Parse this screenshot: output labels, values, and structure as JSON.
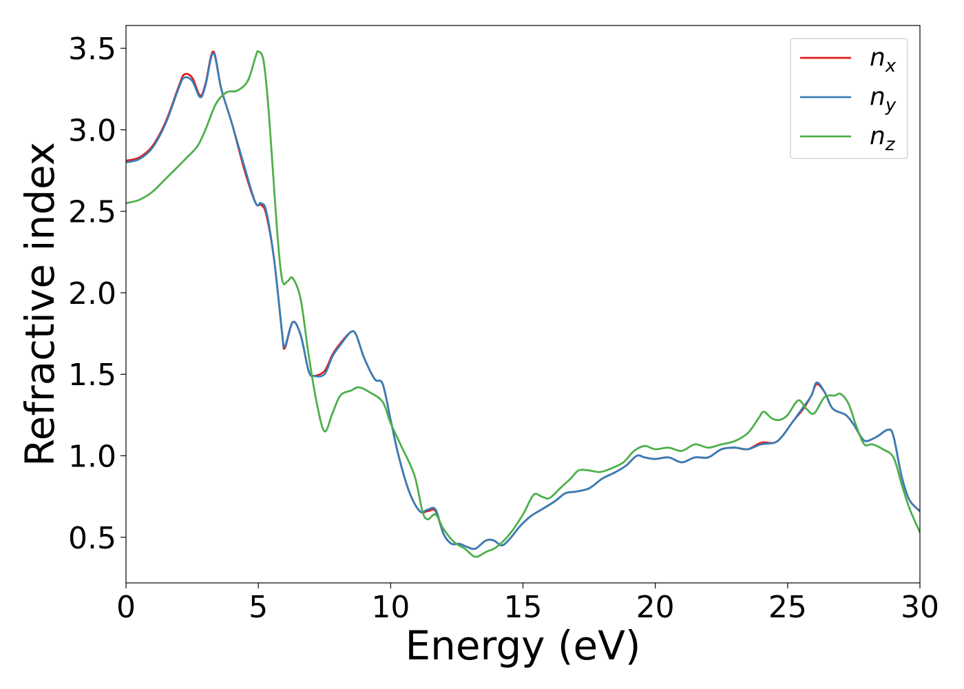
{
  "chart_data": {
    "type": "line",
    "title": "",
    "xlabel": "Energy (eV)",
    "ylabel": "Refractive index",
    "xlim": [
      0,
      30
    ],
    "ylim": [
      0.22,
      3.64
    ],
    "xticks": [
      0,
      5,
      10,
      15,
      20,
      25,
      30
    ],
    "yticks": [
      0.5,
      1.0,
      1.5,
      2.0,
      2.5,
      3.0,
      3.5
    ],
    "xtick_labels": [
      "0",
      "5",
      "10",
      "15",
      "20",
      "25",
      "30"
    ],
    "ytick_labels": [
      "0.5",
      "1.0",
      "1.5",
      "2.0",
      "2.5",
      "3.0",
      "3.5"
    ],
    "grid": false,
    "legend_position": "top-right",
    "series": [
      {
        "name": "n_x",
        "legend_base": "n",
        "legend_sub": "x",
        "color": "#e41a1c",
        "points": [
          [
            0,
            2.81
          ],
          [
            0.5,
            2.83
          ],
          [
            1.0,
            2.9
          ],
          [
            1.5,
            3.05
          ],
          [
            2.0,
            3.27
          ],
          [
            2.2,
            3.34
          ],
          [
            2.5,
            3.32
          ],
          [
            2.8,
            3.21
          ],
          [
            3.0,
            3.28
          ],
          [
            3.3,
            3.48
          ],
          [
            3.6,
            3.25
          ],
          [
            4.0,
            3.04
          ],
          [
            4.5,
            2.74
          ],
          [
            4.9,
            2.55
          ],
          [
            5.1,
            2.54
          ],
          [
            5.3,
            2.48
          ],
          [
            5.6,
            2.2
          ],
          [
            5.9,
            1.75
          ],
          [
            6.0,
            1.66
          ],
          [
            6.3,
            1.82
          ],
          [
            6.6,
            1.74
          ],
          [
            6.9,
            1.52
          ],
          [
            7.1,
            1.49
          ],
          [
            7.5,
            1.52
          ],
          [
            7.8,
            1.62
          ],
          [
            8.1,
            1.69
          ],
          [
            8.5,
            1.76
          ],
          [
            8.7,
            1.74
          ],
          [
            9.0,
            1.6
          ],
          [
            9.4,
            1.47
          ],
          [
            9.7,
            1.44
          ],
          [
            10.0,
            1.22
          ],
          [
            10.3,
            1.0
          ],
          [
            10.7,
            0.78
          ],
          [
            11.1,
            0.66
          ],
          [
            11.4,
            0.66
          ],
          [
            11.7,
            0.66
          ],
          [
            12.0,
            0.52
          ],
          [
            12.3,
            0.46
          ],
          [
            12.6,
            0.46
          ],
          [
            12.9,
            0.44
          ],
          [
            13.2,
            0.43
          ],
          [
            13.6,
            0.48
          ],
          [
            13.9,
            0.48
          ],
          [
            14.2,
            0.45
          ],
          [
            14.5,
            0.49
          ],
          [
            14.9,
            0.57
          ],
          [
            15.3,
            0.63
          ],
          [
            15.7,
            0.67
          ],
          [
            16.2,
            0.72
          ],
          [
            16.6,
            0.77
          ],
          [
            17.0,
            0.78
          ],
          [
            17.5,
            0.8
          ],
          [
            18.0,
            0.86
          ],
          [
            18.5,
            0.9
          ],
          [
            18.9,
            0.94
          ],
          [
            19.3,
            1.0
          ],
          [
            19.6,
            0.99
          ],
          [
            20.0,
            0.98
          ],
          [
            20.5,
            0.99
          ],
          [
            21.0,
            0.96
          ],
          [
            21.5,
            0.99
          ],
          [
            22.0,
            0.99
          ],
          [
            22.5,
            1.04
          ],
          [
            23.0,
            1.05
          ],
          [
            23.5,
            1.04
          ],
          [
            24.0,
            1.08
          ],
          [
            24.5,
            1.08
          ],
          [
            24.8,
            1.12
          ],
          [
            25.2,
            1.21
          ],
          [
            25.6,
            1.29
          ],
          [
            25.9,
            1.37
          ],
          [
            26.1,
            1.44
          ],
          [
            26.4,
            1.39
          ],
          [
            26.7,
            1.29
          ],
          [
            27.2,
            1.25
          ],
          [
            27.5,
            1.19
          ],
          [
            27.8,
            1.11
          ],
          [
            28.0,
            1.09
          ],
          [
            28.4,
            1.12
          ],
          [
            28.8,
            1.16
          ],
          [
            29.0,
            1.12
          ],
          [
            29.3,
            0.88
          ],
          [
            29.6,
            0.73
          ],
          [
            30.0,
            0.66
          ]
        ]
      },
      {
        "name": "n_y",
        "legend_base": "n",
        "legend_sub": "y",
        "color": "#377eb8",
        "points": [
          [
            0,
            2.8
          ],
          [
            0.5,
            2.82
          ],
          [
            1.0,
            2.89
          ],
          [
            1.5,
            3.04
          ],
          [
            2.0,
            3.26
          ],
          [
            2.2,
            3.32
          ],
          [
            2.5,
            3.3
          ],
          [
            2.8,
            3.2
          ],
          [
            3.0,
            3.27
          ],
          [
            3.3,
            3.47
          ],
          [
            3.6,
            3.25
          ],
          [
            4.0,
            3.04
          ],
          [
            4.5,
            2.76
          ],
          [
            4.9,
            2.55
          ],
          [
            5.1,
            2.55
          ],
          [
            5.3,
            2.5
          ],
          [
            5.6,
            2.2
          ],
          [
            5.9,
            1.75
          ],
          [
            6.0,
            1.67
          ],
          [
            6.3,
            1.82
          ],
          [
            6.6,
            1.74
          ],
          [
            6.9,
            1.52
          ],
          [
            7.1,
            1.49
          ],
          [
            7.5,
            1.5
          ],
          [
            7.8,
            1.61
          ],
          [
            8.1,
            1.68
          ],
          [
            8.5,
            1.76
          ],
          [
            8.7,
            1.74
          ],
          [
            9.0,
            1.6
          ],
          [
            9.4,
            1.47
          ],
          [
            9.7,
            1.44
          ],
          [
            10.0,
            1.22
          ],
          [
            10.3,
            1.0
          ],
          [
            10.7,
            0.78
          ],
          [
            11.1,
            0.66
          ],
          [
            11.4,
            0.67
          ],
          [
            11.7,
            0.67
          ],
          [
            12.0,
            0.52
          ],
          [
            12.3,
            0.46
          ],
          [
            12.6,
            0.46
          ],
          [
            12.9,
            0.44
          ],
          [
            13.2,
            0.43
          ],
          [
            13.6,
            0.48
          ],
          [
            13.9,
            0.48
          ],
          [
            14.2,
            0.45
          ],
          [
            14.5,
            0.49
          ],
          [
            14.9,
            0.57
          ],
          [
            15.3,
            0.63
          ],
          [
            15.7,
            0.67
          ],
          [
            16.2,
            0.72
          ],
          [
            16.6,
            0.77
          ],
          [
            17.0,
            0.78
          ],
          [
            17.5,
            0.8
          ],
          [
            18.0,
            0.86
          ],
          [
            18.5,
            0.9
          ],
          [
            18.9,
            0.94
          ],
          [
            19.3,
            1.0
          ],
          [
            19.6,
            0.99
          ],
          [
            20.0,
            0.98
          ],
          [
            20.5,
            0.99
          ],
          [
            21.0,
            0.96
          ],
          [
            21.5,
            0.99
          ],
          [
            22.0,
            0.99
          ],
          [
            22.5,
            1.04
          ],
          [
            23.0,
            1.05
          ],
          [
            23.5,
            1.04
          ],
          [
            24.0,
            1.07
          ],
          [
            24.5,
            1.08
          ],
          [
            24.8,
            1.12
          ],
          [
            25.2,
            1.21
          ],
          [
            25.6,
            1.3
          ],
          [
            25.9,
            1.37
          ],
          [
            26.1,
            1.45
          ],
          [
            26.4,
            1.39
          ],
          [
            26.7,
            1.29
          ],
          [
            27.2,
            1.25
          ],
          [
            27.5,
            1.19
          ],
          [
            27.8,
            1.11
          ],
          [
            28.0,
            1.09
          ],
          [
            28.4,
            1.12
          ],
          [
            28.8,
            1.16
          ],
          [
            29.0,
            1.12
          ],
          [
            29.3,
            0.88
          ],
          [
            29.6,
            0.73
          ],
          [
            30.0,
            0.66
          ]
        ]
      },
      {
        "name": "n_z",
        "legend_base": "n",
        "legend_sub": "z",
        "color": "#4daf4a",
        "points": [
          [
            0,
            2.55
          ],
          [
            0.5,
            2.57
          ],
          [
            1.0,
            2.62
          ],
          [
            1.5,
            2.7
          ],
          [
            2.0,
            2.78
          ],
          [
            2.3,
            2.83
          ],
          [
            2.7,
            2.9
          ],
          [
            3.0,
            3.0
          ],
          [
            3.4,
            3.16
          ],
          [
            3.8,
            3.23
          ],
          [
            4.2,
            3.24
          ],
          [
            4.6,
            3.3
          ],
          [
            4.9,
            3.45
          ],
          [
            5.0,
            3.48
          ],
          [
            5.2,
            3.42
          ],
          [
            5.4,
            3.1
          ],
          [
            5.7,
            2.4
          ],
          [
            5.9,
            2.08
          ],
          [
            6.1,
            2.07
          ],
          [
            6.3,
            2.09
          ],
          [
            6.6,
            1.96
          ],
          [
            6.9,
            1.62
          ],
          [
            7.2,
            1.33
          ],
          [
            7.5,
            1.15
          ],
          [
            7.8,
            1.26
          ],
          [
            8.1,
            1.37
          ],
          [
            8.5,
            1.4
          ],
          [
            8.8,
            1.42
          ],
          [
            9.2,
            1.39
          ],
          [
            9.7,
            1.33
          ],
          [
            10.0,
            1.2
          ],
          [
            10.4,
            1.06
          ],
          [
            10.9,
            0.88
          ],
          [
            11.2,
            0.66
          ],
          [
            11.4,
            0.61
          ],
          [
            11.7,
            0.64
          ],
          [
            12.0,
            0.55
          ],
          [
            12.4,
            0.47
          ],
          [
            12.8,
            0.43
          ],
          [
            13.2,
            0.38
          ],
          [
            13.6,
            0.41
          ],
          [
            14.0,
            0.44
          ],
          [
            14.5,
            0.52
          ],
          [
            15.0,
            0.64
          ],
          [
            15.4,
            0.76
          ],
          [
            15.7,
            0.75
          ],
          [
            16.0,
            0.74
          ],
          [
            16.4,
            0.8
          ],
          [
            16.8,
            0.86
          ],
          [
            17.1,
            0.91
          ],
          [
            17.5,
            0.91
          ],
          [
            17.9,
            0.9
          ],
          [
            18.3,
            0.92
          ],
          [
            18.8,
            0.96
          ],
          [
            19.2,
            1.03
          ],
          [
            19.6,
            1.06
          ],
          [
            20.0,
            1.04
          ],
          [
            20.5,
            1.05
          ],
          [
            21.0,
            1.03
          ],
          [
            21.5,
            1.07
          ],
          [
            22.0,
            1.05
          ],
          [
            22.5,
            1.07
          ],
          [
            23.0,
            1.09
          ],
          [
            23.5,
            1.14
          ],
          [
            23.9,
            1.23
          ],
          [
            24.1,
            1.27
          ],
          [
            24.4,
            1.23
          ],
          [
            24.7,
            1.22
          ],
          [
            25.0,
            1.25
          ],
          [
            25.4,
            1.34
          ],
          [
            25.7,
            1.29
          ],
          [
            26.0,
            1.26
          ],
          [
            26.4,
            1.36
          ],
          [
            26.8,
            1.37
          ],
          [
            27.0,
            1.38
          ],
          [
            27.3,
            1.32
          ],
          [
            27.6,
            1.18
          ],
          [
            27.9,
            1.07
          ],
          [
            28.2,
            1.07
          ],
          [
            28.6,
            1.04
          ],
          [
            29.0,
            0.99
          ],
          [
            29.3,
            0.83
          ],
          [
            29.6,
            0.68
          ],
          [
            30.0,
            0.53
          ]
        ]
      }
    ]
  }
}
